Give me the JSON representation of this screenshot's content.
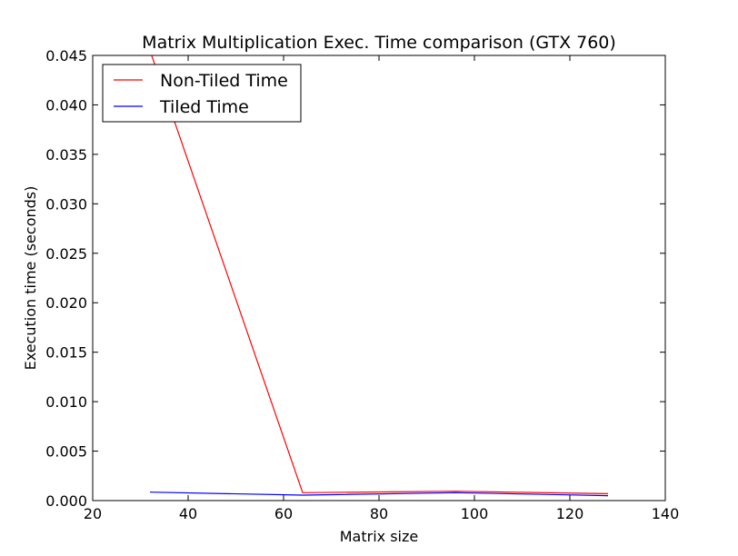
{
  "chart_data": {
    "type": "line",
    "title": "Matrix Multiplication Exec. Time comparison (GTX 760)",
    "xlabel": "Matrix size",
    "ylabel": "Execution time (seconds)",
    "xlim": [
      20,
      140
    ],
    "ylim": [
      0,
      0.045
    ],
    "xticks": [
      "20",
      "40",
      "60",
      "80",
      "100",
      "120",
      "140"
    ],
    "yticks": [
      "0.000",
      "0.005",
      "0.010",
      "0.015",
      "0.020",
      "0.025",
      "0.030",
      "0.035",
      "0.040",
      "0.045"
    ],
    "grid": false,
    "legend_position": "top-left",
    "series": [
      {
        "name": "Non-Tiled Time",
        "color": "#ff0000",
        "x": [
          32,
          64,
          96,
          128
        ],
        "y": [
          0.0455,
          0.0008,
          0.00095,
          0.0007
        ]
      },
      {
        "name": "Tiled Time",
        "color": "#0000ff",
        "x": [
          32,
          64,
          96,
          128
        ],
        "y": [
          0.00085,
          0.00055,
          0.0008,
          0.0005
        ]
      }
    ]
  }
}
